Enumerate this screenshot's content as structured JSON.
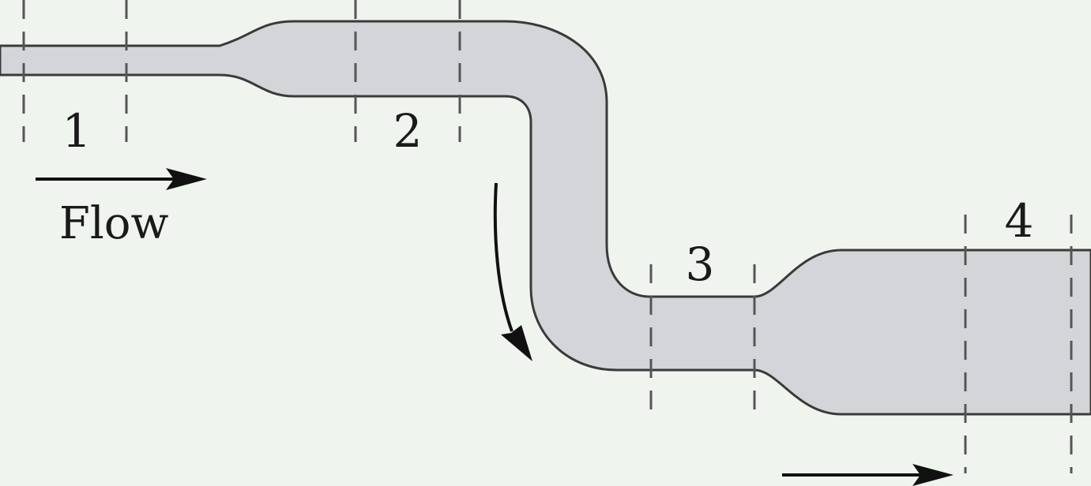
{
  "diagram": {
    "sections": [
      {
        "id": "1",
        "label": "1"
      },
      {
        "id": "2",
        "label": "2"
      },
      {
        "id": "3",
        "label": "3"
      },
      {
        "id": "4",
        "label": "4"
      }
    ],
    "flow_label": "Flow"
  },
  "colors": {
    "background": "#eff4ef",
    "pipe_fill": "#d4d5d9",
    "pipe_stroke": "#3a3a3a",
    "dash": "#555555",
    "arrow": "#111111"
  }
}
